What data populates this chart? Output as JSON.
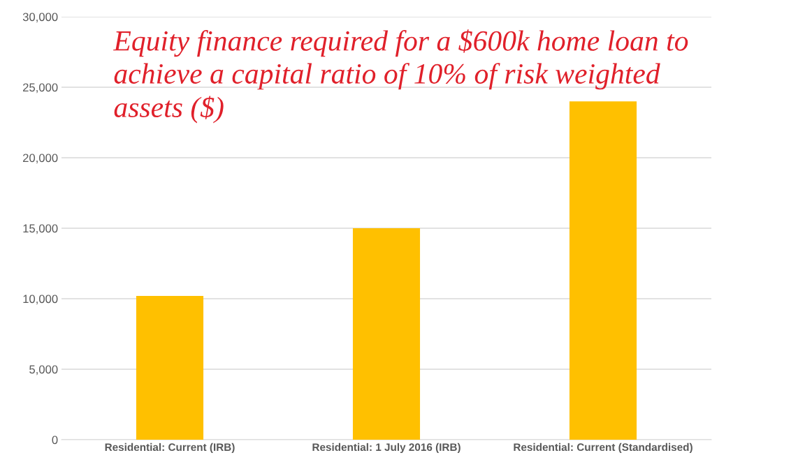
{
  "chart_data": {
    "type": "bar",
    "title": "Equity finance required for a $600k home loan to achieve a capital ratio of 10% of risk weighted assets ($)",
    "categories": [
      "Residential: Current (IRB)",
      "Residential: 1 July 2016 (IRB)",
      "Residential: Current (Standardised)"
    ],
    "values": [
      10200,
      15000,
      24000
    ],
    "color": "#ffc000",
    "ylim": [
      0,
      30000
    ],
    "yticks": [
      {
        "value": 0,
        "label": "0"
      },
      {
        "value": 5000,
        "label": "5,000"
      },
      {
        "value": 10000,
        "label": "10,000"
      },
      {
        "value": 15000,
        "label": "15,000"
      },
      {
        "value": 20000,
        "label": "20,000"
      },
      {
        "value": 25000,
        "label": "25,000"
      },
      {
        "value": 30000,
        "label": "30,000"
      }
    ],
    "grid": "y"
  }
}
